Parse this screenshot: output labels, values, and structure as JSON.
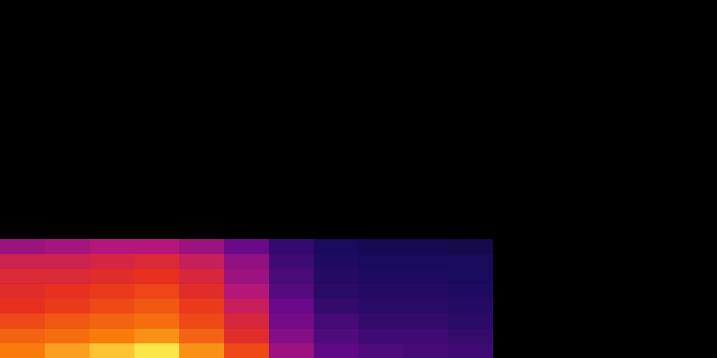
{
  "chart_data": {
    "type": "heatmap",
    "tick_labels": false,
    "grid": false,
    "xlim": [
      0,
      16
    ],
    "ylim": [
      0,
      24
    ],
    "zlim": [
      0,
      1
    ],
    "z": [
      [
        0.85,
        0.9,
        0.95,
        1.0,
        0.88,
        0.75,
        0.5,
        0.38,
        0.35,
        0.33,
        0.32,
        0,
        0,
        0,
        0,
        0
      ],
      [
        0.8,
        0.82,
        0.85,
        0.88,
        0.8,
        0.68,
        0.45,
        0.35,
        0.32,
        0.32,
        0.3,
        0,
        0,
        0,
        0,
        0
      ],
      [
        0.75,
        0.78,
        0.8,
        0.82,
        0.75,
        0.65,
        0.42,
        0.33,
        0.3,
        0.3,
        0.28,
        0,
        0,
        0,
        0,
        0
      ],
      [
        0.7,
        0.72,
        0.75,
        0.78,
        0.72,
        0.6,
        0.4,
        0.3,
        0.28,
        0.28,
        0.27,
        0,
        0,
        0,
        0,
        0
      ],
      [
        0.68,
        0.7,
        0.72,
        0.74,
        0.68,
        0.55,
        0.36,
        0.28,
        0.27,
        0.27,
        0.26,
        0,
        0,
        0,
        0,
        0
      ],
      [
        0.66,
        0.66,
        0.68,
        0.7,
        0.65,
        0.5,
        0.34,
        0.27,
        0.26,
        0.26,
        0.25,
        0,
        0,
        0,
        0,
        0
      ],
      [
        0.62,
        0.62,
        0.64,
        0.66,
        0.6,
        0.48,
        0.32,
        0.26,
        0.25,
        0.25,
        0.24,
        0,
        0,
        0,
        0,
        0
      ],
      [
        0.5,
        0.52,
        0.55,
        0.55,
        0.5,
        0.4,
        0.3,
        0.25,
        0.22,
        0.22,
        0.2,
        0,
        0,
        0,
        0,
        0
      ],
      [
        0,
        0,
        0,
        0,
        0,
        0,
        0,
        0,
        0,
        0,
        0,
        0,
        0,
        0,
        0,
        0
      ],
      [
        0,
        0,
        0,
        0,
        0,
        0,
        0,
        0,
        0,
        0,
        0,
        0,
        0,
        0,
        0,
        0
      ],
      [
        0,
        0,
        0,
        0,
        0,
        0,
        0,
        0,
        0,
        0,
        0,
        0,
        0,
        0,
        0,
        0
      ],
      [
        0,
        0,
        0,
        0,
        0,
        0,
        0,
        0,
        0,
        0,
        0,
        0,
        0,
        0,
        0,
        0
      ],
      [
        0,
        0,
        0,
        0,
        0,
        0,
        0,
        0,
        0,
        0,
        0,
        0,
        0,
        0,
        0,
        0
      ],
      [
        0,
        0,
        0,
        0,
        0,
        0,
        0,
        0,
        0,
        0,
        0,
        0,
        0,
        0,
        0,
        0
      ],
      [
        0,
        0,
        0,
        0,
        0,
        0,
        0,
        0,
        0,
        0,
        0,
        0,
        0,
        0,
        0,
        0
      ],
      [
        0,
        0,
        0,
        0,
        0,
        0,
        0,
        0,
        0,
        0,
        0,
        0,
        0,
        0,
        0,
        0
      ],
      [
        0,
        0,
        0,
        0,
        0,
        0,
        0,
        0,
        0,
        0,
        0,
        0,
        0,
        0,
        0,
        0
      ],
      [
        0,
        0,
        0,
        0,
        0,
        0,
        0,
        0,
        0,
        0,
        0,
        0,
        0,
        0,
        0,
        0
      ],
      [
        0,
        0,
        0,
        0,
        0,
        0,
        0,
        0,
        0,
        0,
        0,
        0,
        0,
        0,
        0,
        0
      ],
      [
        0,
        0,
        0,
        0,
        0,
        0,
        0,
        0,
        0,
        0,
        0,
        0,
        0,
        0,
        0,
        0
      ],
      [
        0,
        0,
        0,
        0,
        0,
        0,
        0,
        0,
        0,
        0,
        0,
        0,
        0,
        0,
        0,
        0
      ],
      [
        0,
        0,
        0,
        0,
        0,
        0,
        0,
        0,
        0,
        0,
        0,
        0,
        0,
        0,
        0,
        0
      ],
      [
        0,
        0,
        0,
        0,
        0,
        0,
        0,
        0,
        0,
        0,
        0,
        0,
        0,
        0,
        0,
        0
      ],
      [
        0,
        0,
        0,
        0,
        0,
        0,
        0,
        0,
        0,
        0,
        0,
        0,
        0,
        0,
        0,
        0
      ]
    ]
  }
}
